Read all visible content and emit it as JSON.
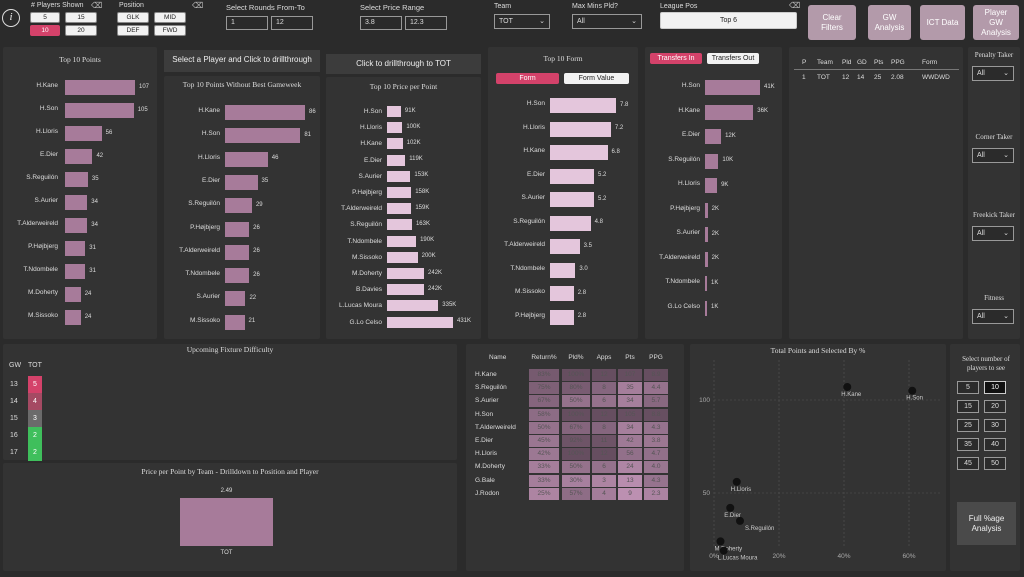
{
  "header": {
    "info_icon": "i",
    "players_shown": {
      "label": "# Players Shown",
      "options": [
        "5",
        "15",
        "10",
        "20"
      ],
      "selected": "10"
    },
    "position": {
      "label": "Position",
      "options": [
        "GLK",
        "MID",
        "DEF",
        "FWD"
      ]
    },
    "rounds": {
      "label": "Select Rounds From-To",
      "from": "1",
      "to": "12"
    },
    "price": {
      "label": "Select Price Range",
      "from": "3.8",
      "to": "12.3"
    },
    "team": {
      "label": "Team",
      "value": "TOT"
    },
    "max_mins": {
      "label": "Max Mins Pld?",
      "value": "All"
    },
    "league_pos": {
      "label": "League Pos",
      "value": "Top 6"
    },
    "buttons": {
      "clear": "Clear Filters",
      "gw": "GW Analysis",
      "ict": "ICT Data",
      "player_gw": "Player GW Analysis"
    }
  },
  "top10_points": {
    "title": "Top 10 Points",
    "items": [
      {
        "name": "H.Kane",
        "value": 107
      },
      {
        "name": "H.Son",
        "value": 105
      },
      {
        "name": "H.Lloris",
        "value": 56
      },
      {
        "name": "E.Dier",
        "value": 42
      },
      {
        "name": "S.Reguilón",
        "value": 35
      },
      {
        "name": "S.Aurier",
        "value": 34
      },
      {
        "name": "T.Alderweireld",
        "value": 34
      },
      {
        "name": "P.Højbjerg",
        "value": 31
      },
      {
        "name": "T.Ndombele",
        "value": 31
      },
      {
        "name": "M.Doherty",
        "value": 24
      },
      {
        "name": "M.Sissoko",
        "value": 24
      }
    ]
  },
  "drill_player_label": "Select a Player and Click to drillthrough",
  "drill_tot_label": "Click to drillthrough to TOT",
  "top10_wo_best": {
    "title": "Top 10 Points Without Best Gameweek",
    "items": [
      {
        "name": "H.Kane",
        "value": 86
      },
      {
        "name": "H.Son",
        "value": 81
      },
      {
        "name": "H.Lloris",
        "value": 46
      },
      {
        "name": "E.Dier",
        "value": 35
      },
      {
        "name": "S.Reguilón",
        "value": 29
      },
      {
        "name": "P.Højbjerg",
        "value": 26
      },
      {
        "name": "T.Alderweireld",
        "value": 26
      },
      {
        "name": "T.Ndombele",
        "value": 26
      },
      {
        "name": "S.Aurier",
        "value": 22
      },
      {
        "name": "M.Sissoko",
        "value": 21
      }
    ]
  },
  "top10_price": {
    "title": "Top 10 Price per Point",
    "items": [
      {
        "name": "H.Son",
        "value": 91,
        "label": "91K"
      },
      {
        "name": "H.Lloris",
        "value": 100,
        "label": "100K"
      },
      {
        "name": "H.Kane",
        "value": 102,
        "label": "102K"
      },
      {
        "name": "E.Dier",
        "value": 119,
        "label": "119K"
      },
      {
        "name": "S.Aurier",
        "value": 153,
        "label": "153K"
      },
      {
        "name": "P.Højbjerg",
        "value": 158,
        "label": "158K"
      },
      {
        "name": "T.Alderweireld",
        "value": 159,
        "label": "159K"
      },
      {
        "name": "S.Reguilón",
        "value": 163,
        "label": "163K"
      },
      {
        "name": "T.Ndombele",
        "value": 190,
        "label": "190K"
      },
      {
        "name": "M.Sissoko",
        "value": 200,
        "label": "200K"
      },
      {
        "name": "M.Doherty",
        "value": 242,
        "label": "242K"
      },
      {
        "name": "B.Davies",
        "value": 242,
        "label": "242K"
      },
      {
        "name": "L.Lucas Moura",
        "value": 335,
        "label": "335K"
      },
      {
        "name": "G.Lo Celso",
        "value": 431,
        "label": "431K"
      }
    ]
  },
  "top10_form": {
    "title": "Top 10 Form",
    "toggle": [
      "Form",
      "Form Value"
    ],
    "items": [
      {
        "name": "H.Son",
        "value": 7.8
      },
      {
        "name": "H.Lloris",
        "value": 7.2
      },
      {
        "name": "H.Kane",
        "value": 6.8
      },
      {
        "name": "E.Dier",
        "value": 5.2
      },
      {
        "name": "S.Aurier",
        "value": 5.2
      },
      {
        "name": "S.Reguilón",
        "value": 4.8
      },
      {
        "name": "T.Alderweireld",
        "value": 3.5
      },
      {
        "name": "T.Ndombele",
        "value": 3.0
      },
      {
        "name": "M.Sissoko",
        "value": 2.8
      },
      {
        "name": "P.Højbjerg",
        "value": 2.8
      }
    ]
  },
  "transfers": {
    "toggle": [
      "Transfers In",
      "Transfers Out"
    ],
    "items": [
      {
        "name": "H.Son",
        "value": 41,
        "label": "41K"
      },
      {
        "name": "H.Kane",
        "value": 36,
        "label": "36K"
      },
      {
        "name": "E.Dier",
        "value": 12,
        "label": "12K"
      },
      {
        "name": "S.Reguilón",
        "value": 10,
        "label": "10K"
      },
      {
        "name": "H.Lloris",
        "value": 9,
        "label": "9K"
      },
      {
        "name": "P.Højbjerg",
        "value": 2,
        "label": "2K"
      },
      {
        "name": "S.Aurier",
        "value": 2,
        "label": "2K"
      },
      {
        "name": "T.Alderweireld",
        "value": 2,
        "label": "2K"
      },
      {
        "name": "T.Ndombele",
        "value": 1,
        "label": "1K"
      },
      {
        "name": "G.Lo Celso",
        "value": 1,
        "label": "1K"
      }
    ]
  },
  "league_table": {
    "headers": [
      "P",
      "Team",
      "Pld",
      "GD",
      "Pts",
      "PPG",
      "Form"
    ],
    "row": [
      "1",
      "TOT",
      "12",
      "14",
      "25",
      "2.08",
      "WWDWD"
    ]
  },
  "right_filters": {
    "penalty": {
      "label": "Penalty Taker",
      "value": "All"
    },
    "corner": {
      "label": "Corner Taker",
      "value": "All"
    },
    "freekick": {
      "label": "Freekick Taker",
      "value": "All"
    },
    "fitness": {
      "label": "Fitness",
      "value": "All"
    }
  },
  "fixture": {
    "title": "Upcoming Fixture Difficulty",
    "headers": [
      "GW",
      "TOT"
    ],
    "rows": [
      {
        "gw": "13",
        "val": "5",
        "color": "#d4426a"
      },
      {
        "gw": "14",
        "val": "4",
        "color": "#a54a63"
      },
      {
        "gw": "15",
        "val": "3",
        "color": "#6b6b6b"
      },
      {
        "gw": "16",
        "val": "2",
        "color": "#3fbf5c"
      },
      {
        "gw": "17",
        "val": "2",
        "color": "#3fbf5c"
      }
    ]
  },
  "team_price": {
    "title": "Price per Point by Team - Drilldown to Position and Player",
    "value_label": "2.49",
    "category": "TOT"
  },
  "stats_table": {
    "headers": [
      "Name",
      "Return%",
      "Pld%",
      "Apps",
      "Pts",
      "PPG"
    ],
    "rows": [
      [
        "H.Kane",
        "83%",
        "100%",
        "12",
        "107",
        "8.9"
      ],
      [
        "S.Reguilón",
        "75%",
        "80%",
        "8",
        "35",
        "4.4"
      ],
      [
        "S.Aurier",
        "67%",
        "50%",
        "6",
        "34",
        "5.7"
      ],
      [
        "H.Son",
        "58%",
        "100%",
        "12",
        "105",
        "8.8"
      ],
      [
        "T.Alderweireld",
        "50%",
        "67%",
        "8",
        "34",
        "4.3"
      ],
      [
        "E.Dier",
        "45%",
        "92%",
        "11",
        "42",
        "3.8"
      ],
      [
        "H.Lloris",
        "42%",
        "100%",
        "12",
        "56",
        "4.7"
      ],
      [
        "M.Doherty",
        "33%",
        "50%",
        "6",
        "24",
        "4.0"
      ],
      [
        "G.Bale",
        "33%",
        "30%",
        "3",
        "13",
        "4.3"
      ],
      [
        "J.Rodon",
        "25%",
        "57%",
        "4",
        "9",
        "2.3"
      ]
    ]
  },
  "scatter": {
    "title": "Total Points and Selected By %",
    "yticks": [
      "100",
      "50"
    ],
    "xticks": [
      "0%",
      "20%",
      "40%",
      "60%"
    ],
    "points": [
      {
        "name": "H.Kane",
        "x": 41,
        "y": 107
      },
      {
        "name": "H.Son",
        "x": 61,
        "y": 105
      },
      {
        "name": "H.Lloris",
        "x": 7,
        "y": 56
      },
      {
        "name": "S.Reguilón",
        "x": 8,
        "y": 35
      },
      {
        "name": "E.Dier",
        "x": 5,
        "y": 42
      },
      {
        "name": "M.Doherty",
        "x": 2,
        "y": 24
      },
      {
        "name": "L.Lucas Moura",
        "x": 3,
        "y": 19
      }
    ]
  },
  "select_players": {
    "label": "Select number of players to see",
    "options": [
      "5",
      "10",
      "15",
      "20",
      "25",
      "30",
      "35",
      "40",
      "45",
      "50"
    ],
    "selected": "10"
  },
  "full_age_button": "Full %age Analysis"
}
